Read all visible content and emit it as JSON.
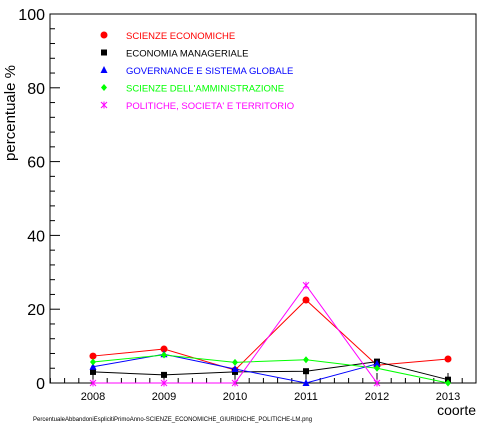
{
  "chart_data": {
    "type": "line",
    "xlabel": "coorte",
    "ylabel": "percentuale %",
    "ylim": [
      0,
      100
    ],
    "y_ticks": [
      0,
      20,
      40,
      60,
      80,
      100
    ],
    "x": [
      2008,
      2009,
      2010,
      2011,
      2012,
      2013
    ],
    "grid": false,
    "legend_placement": "top-left",
    "series": [
      {
        "name": "SCIENZE ECONOMICHE",
        "color": "#ff0000",
        "marker": "circle",
        "values": [
          7.3,
          9.2,
          3.5,
          22.5,
          4.8,
          6.5
        ]
      },
      {
        "name": "ECONOMIA MANAGERIALE",
        "color": "#000000",
        "marker": "square",
        "values": [
          3.0,
          2.2,
          3.0,
          3.2,
          5.8,
          0.9
        ]
      },
      {
        "name": "GOVERNANCE E SISTEMA GLOBALE",
        "color": "#0000ff",
        "marker": "triangle",
        "values": [
          4.4,
          7.8,
          3.8,
          0.0,
          5.2,
          null
        ]
      },
      {
        "name": "SCIENZE DELL'AMMINISTRAZIONE",
        "color": "#00ff00",
        "marker": "diamond",
        "values": [
          5.7,
          7.6,
          5.6,
          6.3,
          4.0,
          0.0
        ]
      },
      {
        "name": "POLITICHE, SOCIETA' E TERRITORIO",
        "color": "#ff00ff",
        "marker": "star",
        "values": [
          0.0,
          0.0,
          0.0,
          26.5,
          0.0,
          null
        ]
      }
    ]
  },
  "footnote": "PercentualeAbbandoniEsplicitiPrimoAnno-SCIENZE_ECONOMICHE_GIURIDICHE_POLITICHE-LM.png"
}
